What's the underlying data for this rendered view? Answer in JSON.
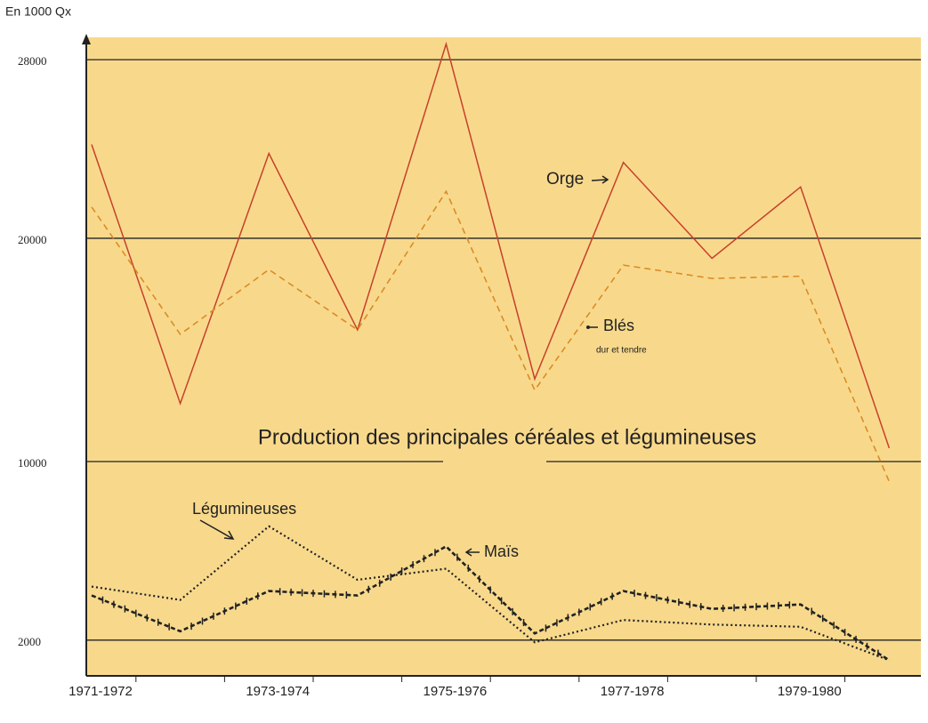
{
  "chart_data": {
    "type": "line",
    "title": "Production des principales céréales et légumineuses",
    "y_label": "En 1000 Qx",
    "categories": [
      "1971-1972",
      null,
      "1973-1974",
      null,
      "1975-1976",
      null,
      "1977-1978",
      null,
      "1979-1980",
      null
    ],
    "ylim": [
      400,
      29000
    ],
    "yticks": [
      2000,
      10000,
      20000,
      28000
    ],
    "grid": true,
    "series": [
      {
        "name": "Orge",
        "color": "#c8402a",
        "style": "solid",
        "values": [
          24200,
          12600,
          23800,
          15900,
          28700,
          13700,
          23400,
          19100,
          22300,
          10600
        ]
      },
      {
        "name": "Blés",
        "subtitle": "dur et tendre",
        "color": "#d98c26",
        "style": "dashed",
        "values": [
          21400,
          15700,
          18600,
          15900,
          22100,
          13200,
          18800,
          18200,
          18300,
          9100
        ]
      },
      {
        "name": "Légumineuses",
        "color": "#222222",
        "style": "dotted",
        "values": [
          4400,
          3800,
          7100,
          4700,
          5200,
          1900,
          2900,
          2700,
          2600,
          1100
        ]
      },
      {
        "name": "Maïs",
        "color": "#222222",
        "style": "crossed",
        "values": [
          4000,
          2400,
          4200,
          4000,
          6200,
          2300,
          4200,
          3400,
          3600,
          1100
        ]
      }
    ]
  }
}
